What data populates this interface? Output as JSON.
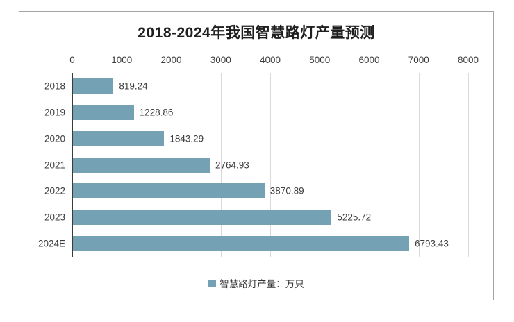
{
  "chart_data": {
    "type": "bar",
    "orientation": "horizontal",
    "title": "2018-2024年我国智慧路灯产量预测",
    "categories": [
      "2018",
      "2019",
      "2020",
      "2021",
      "2022",
      "2023",
      "2024E"
    ],
    "values": [
      819.24,
      1228.86,
      1843.29,
      2764.93,
      3870.89,
      5225.72,
      6793.43
    ],
    "value_labels": [
      "819.24",
      "1228.86",
      "1843.29",
      "2764.93",
      "3870.89",
      "5225.72",
      "6793.43"
    ],
    "xlim": [
      0,
      8000
    ],
    "xticks": [
      0,
      1000,
      2000,
      3000,
      4000,
      5000,
      6000,
      7000,
      8000
    ],
    "xlabel": "",
    "ylabel": "",
    "grid": "vertical",
    "legend": {
      "label": "智慧路灯产量：万只",
      "position": "bottom"
    },
    "colors": {
      "bar": "#74a2b4",
      "gridline": "#d9d9d9",
      "axis": "#3b3b3b",
      "text": "#3d3d3d",
      "title": "#1f1f1f",
      "border": "#a3a3a3"
    }
  }
}
